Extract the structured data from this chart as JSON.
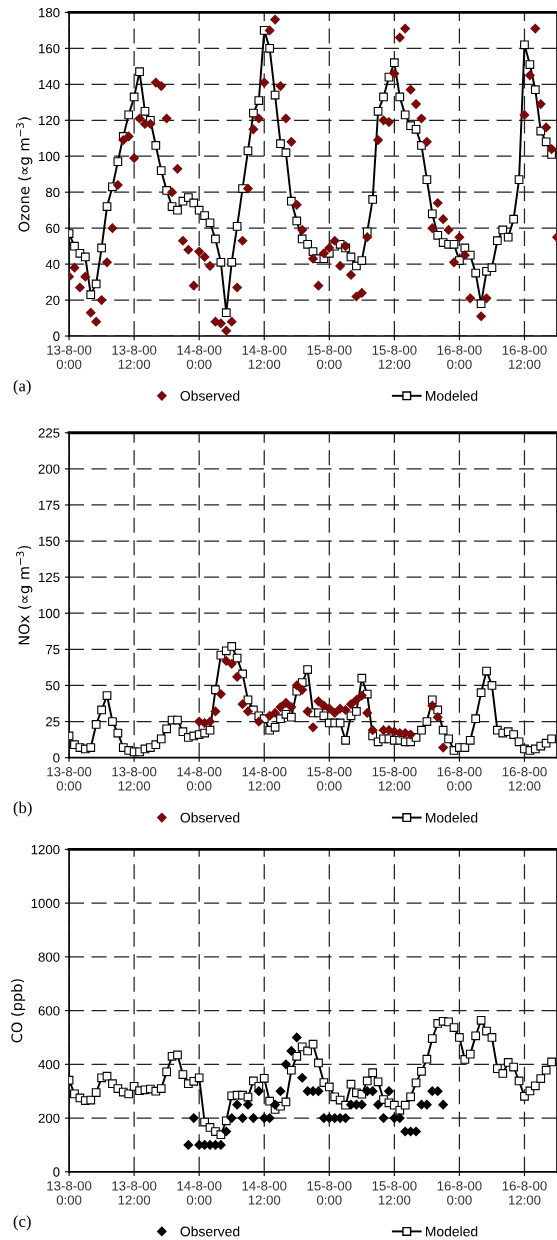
{
  "chart_data": [
    {
      "type": "scatter",
      "ylabel": "Ozone (∝g m$^{−3}$)",
      "annotations": [
        "(a)"
      ],
      "x": [
        "2000-08-13T00:00",
        "2000-08-13T01:00",
        "2000-08-13T02:00",
        "2000-08-13T03:00",
        "2000-08-13T04:00",
        "2000-08-13T05:00",
        "2000-08-13T06:00",
        "2000-08-13T07:00",
        "2000-08-13T08:00",
        "2000-08-13T09:00",
        "2000-08-13T10:00",
        "2000-08-13T11:00",
        "2000-08-13T12:00",
        "2000-08-13T13:00",
        "2000-08-13T14:00",
        "2000-08-13T15:00",
        "2000-08-13T16:00",
        "2000-08-13T17:00",
        "2000-08-13T18:00",
        "2000-08-13T19:00",
        "2000-08-13T20:00",
        "2000-08-13T21:00",
        "2000-08-13T22:00",
        "2000-08-13T23:00",
        "2000-08-14T00:00",
        "2000-08-14T01:00",
        "2000-08-14T02:00",
        "2000-08-14T03:00",
        "2000-08-14T04:00",
        "2000-08-14T05:00",
        "2000-08-14T06:00",
        "2000-08-14T07:00",
        "2000-08-14T08:00",
        "2000-08-14T09:00",
        "2000-08-14T10:00",
        "2000-08-14T11:00",
        "2000-08-14T12:00",
        "2000-08-14T13:00",
        "2000-08-14T14:00",
        "2000-08-14T15:00",
        "2000-08-14T16:00",
        "2000-08-14T17:00",
        "2000-08-14T18:00",
        "2000-08-14T19:00",
        "2000-08-14T20:00",
        "2000-08-14T21:00",
        "2000-08-14T22:00",
        "2000-08-14T23:00",
        "2000-08-15T00:00",
        "2000-08-15T01:00",
        "2000-08-15T02:00",
        "2000-08-15T03:00",
        "2000-08-15T04:00",
        "2000-08-15T05:00",
        "2000-08-15T06:00",
        "2000-08-15T07:00",
        "2000-08-15T08:00",
        "2000-08-15T09:00",
        "2000-08-15T10:00",
        "2000-08-15T11:00",
        "2000-08-15T12:00",
        "2000-08-15T13:00",
        "2000-08-15T14:00",
        "2000-08-15T15:00",
        "2000-08-15T16:00",
        "2000-08-15T17:00",
        "2000-08-15T18:00",
        "2000-08-15T19:00",
        "2000-08-15T20:00",
        "2000-08-15T21:00",
        "2000-08-15T22:00",
        "2000-08-15T23:00",
        "2000-08-16T00:00",
        "2000-08-16T01:00",
        "2000-08-16T02:00",
        "2000-08-16T03:00",
        "2000-08-16T04:00",
        "2000-08-16T05:00",
        "2000-08-16T06:00",
        "2000-08-16T07:00",
        "2000-08-16T08:00",
        "2000-08-16T09:00",
        "2000-08-16T10:00",
        "2000-08-16T11:00",
        "2000-08-16T12:00",
        "2000-08-16T13:00",
        "2000-08-16T14:00",
        "2000-08-16T15:00",
        "2000-08-16T16:00",
        "2000-08-16T17:00",
        "2000-08-16T18:00"
      ],
      "xlim": [
        "2000-08-13T00:00",
        "2000-08-16T18:00"
      ],
      "xticks": [
        {
          "value": "2000-08-13T00:00",
          "label": "13-8-00\n0:00"
        },
        {
          "value": "2000-08-13T12:00",
          "label": "13-8-00\n12:00"
        },
        {
          "value": "2000-08-14T00:00",
          "label": "14-8-00\n0:00"
        },
        {
          "value": "2000-08-14T12:00",
          "label": "14-8-00\n12:00"
        },
        {
          "value": "2000-08-15T00:00",
          "label": "15-8-00\n0:00"
        },
        {
          "value": "2000-08-15T12:00",
          "label": "15-8-00\n12:00"
        },
        {
          "value": "2000-08-16T00:00",
          "label": "16-8-00\n0:00"
        },
        {
          "value": "2000-08-16T12:00",
          "label": "16-8-00\n12:00"
        }
      ],
      "ylim": [
        0,
        180
      ],
      "yticks": [
        0,
        20,
        40,
        60,
        80,
        100,
        120,
        140,
        160,
        180
      ],
      "grid": true,
      "legend": "bottom",
      "series": [
        {
          "name": "Observed",
          "marker": "diamond",
          "color": "#7a0a0a",
          "values": [
            33,
            38,
            27,
            33,
            13,
            8,
            20,
            41,
            60,
            84,
            109,
            111,
            99,
            121,
            118,
            118,
            141,
            139,
            121,
            80,
            93,
            53,
            48,
            28,
            47,
            44,
            39,
            8,
            7,
            3,
            8,
            27,
            53,
            82,
            115,
            121,
            141,
            170,
            176,
            139,
            121,
            108,
            73,
            59,
            null,
            43,
            28,
            46,
            49,
            53,
            39,
            50,
            34,
            22,
            24,
            55,
            null,
            109,
            120,
            119,
            146,
            166,
            171,
            137,
            129,
            121,
            108,
            60,
            74,
            65,
            59,
            41,
            55,
            45,
            21,
            null,
            11,
            21,
            null,
            null,
            null,
            null,
            null,
            null,
            123,
            145,
            171,
            129,
            116,
            104,
            55
          ]
        },
        {
          "name": "Modeled",
          "type": "line",
          "marker": "square",
          "line_style": "solid",
          "color": "#000000",
          "values": [
            57,
            50,
            46,
            44,
            23,
            29,
            49,
            72,
            83,
            97,
            111,
            123,
            133,
            147,
            125,
            120,
            106,
            92,
            81,
            72,
            70,
            75,
            77,
            74,
            70,
            67,
            63,
            54,
            41,
            13,
            41,
            61,
            82,
            103,
            124,
            131,
            170,
            160,
            134,
            107,
            102,
            75,
            64,
            54,
            51,
            47,
            43,
            43,
            46,
            50,
            51,
            49,
            44,
            39,
            42,
            58,
            76,
            125,
            133,
            144,
            152,
            133,
            123,
            117,
            115,
            106,
            87,
            68,
            56,
            52,
            51,
            51,
            42,
            49,
            45,
            35,
            18,
            36,
            38,
            53,
            59,
            55,
            65,
            87,
            162,
            151,
            137,
            114,
            108,
            101,
            null
          ]
        }
      ]
    },
    {
      "type": "scatter",
      "ylabel": "NOx (∝g m$^{−3}$)",
      "annotations": [
        "(b)"
      ],
      "x": [
        "2000-08-13T00:00",
        "2000-08-13T01:00",
        "2000-08-13T02:00",
        "2000-08-13T03:00",
        "2000-08-13T04:00",
        "2000-08-13T05:00",
        "2000-08-13T06:00",
        "2000-08-13T07:00",
        "2000-08-13T08:00",
        "2000-08-13T09:00",
        "2000-08-13T10:00",
        "2000-08-13T11:00",
        "2000-08-13T12:00",
        "2000-08-13T13:00",
        "2000-08-13T14:00",
        "2000-08-13T15:00",
        "2000-08-13T16:00",
        "2000-08-13T17:00",
        "2000-08-13T18:00",
        "2000-08-13T19:00",
        "2000-08-13T20:00",
        "2000-08-13T21:00",
        "2000-08-13T22:00",
        "2000-08-13T23:00",
        "2000-08-14T00:00",
        "2000-08-14T01:00",
        "2000-08-14T02:00",
        "2000-08-14T03:00",
        "2000-08-14T04:00",
        "2000-08-14T05:00",
        "2000-08-14T06:00",
        "2000-08-14T07:00",
        "2000-08-14T08:00",
        "2000-08-14T09:00",
        "2000-08-14T10:00",
        "2000-08-14T11:00",
        "2000-08-14T12:00",
        "2000-08-14T13:00",
        "2000-08-14T14:00",
        "2000-08-14T15:00",
        "2000-08-14T16:00",
        "2000-08-14T17:00",
        "2000-08-14T18:00",
        "2000-08-14T19:00",
        "2000-08-14T20:00",
        "2000-08-14T21:00",
        "2000-08-14T22:00",
        "2000-08-14T23:00",
        "2000-08-15T00:00",
        "2000-08-15T01:00",
        "2000-08-15T02:00",
        "2000-08-15T03:00",
        "2000-08-15T04:00",
        "2000-08-15T05:00",
        "2000-08-15T06:00",
        "2000-08-15T07:00",
        "2000-08-15T08:00",
        "2000-08-15T09:00",
        "2000-08-15T10:00",
        "2000-08-15T11:00",
        "2000-08-15T12:00",
        "2000-08-15T13:00",
        "2000-08-15T14:00",
        "2000-08-15T15:00",
        "2000-08-15T16:00",
        "2000-08-15T17:00",
        "2000-08-15T18:00",
        "2000-08-15T19:00",
        "2000-08-15T20:00",
        "2000-08-15T21:00",
        "2000-08-15T22:00",
        "2000-08-15T23:00",
        "2000-08-16T00:00",
        "2000-08-16T01:00",
        "2000-08-16T02:00",
        "2000-08-16T03:00",
        "2000-08-16T04:00",
        "2000-08-16T05:00",
        "2000-08-16T06:00",
        "2000-08-16T07:00",
        "2000-08-16T08:00",
        "2000-08-16T09:00",
        "2000-08-16T10:00",
        "2000-08-16T11:00",
        "2000-08-16T12:00",
        "2000-08-16T13:00",
        "2000-08-16T14:00",
        "2000-08-16T15:00",
        "2000-08-16T16:00",
        "2000-08-16T17:00"
      ],
      "xlim": [
        "2000-08-13T00:00",
        "2000-08-16T18:00"
      ],
      "xticks": [
        {
          "value": "2000-08-13T00:00",
          "label": "13-8-00\n0:00"
        },
        {
          "value": "2000-08-13T12:00",
          "label": "13-8-00\n12:00"
        },
        {
          "value": "2000-08-14T00:00",
          "label": "14-8-00\n0:00"
        },
        {
          "value": "2000-08-14T12:00",
          "label": "14-8-00\n12:00"
        },
        {
          "value": "2000-08-15T00:00",
          "label": "15-8-00\n0:00"
        },
        {
          "value": "2000-08-15T12:00",
          "label": "15-8-00\n12:00"
        },
        {
          "value": "2000-08-16T00:00",
          "label": "16-8-00\n0:00"
        },
        {
          "value": "2000-08-16T12:00",
          "label": "16-8-00\n12:00"
        }
      ],
      "ylim": [
        0,
        225
      ],
      "yticks": [
        0,
        25,
        50,
        75,
        100,
        125,
        150,
        175,
        200,
        225
      ],
      "grid": true,
      "legend": "bottom",
      "series": [
        {
          "name": "Observed",
          "marker": "diamond",
          "color": "#7a0a0a",
          "values": [
            null,
            null,
            null,
            null,
            null,
            null,
            null,
            null,
            null,
            null,
            null,
            null,
            null,
            null,
            null,
            null,
            null,
            null,
            null,
            null,
            null,
            null,
            null,
            null,
            25,
            24,
            25,
            32,
            44,
            67,
            65,
            56,
            37,
            32,
            null,
            25,
            null,
            29,
            31,
            35,
            38,
            35,
            50,
            47,
            32,
            21,
            39,
            36,
            34,
            31,
            34,
            33,
            37,
            40,
            43,
            31,
            19,
            null,
            19,
            19,
            18,
            17,
            17,
            16,
            null,
            null,
            null,
            36,
            28,
            7,
            null,
            null,
            null,
            null,
            null,
            null,
            null,
            null,
            null,
            null,
            null,
            null,
            null,
            null,
            null,
            null,
            null,
            null,
            null,
            null
          ]
        },
        {
          "name": "Modeled",
          "type": "line",
          "marker": "square",
          "line_style": "solid",
          "color": "#000000",
          "values": [
            15,
            9,
            7,
            6,
            7,
            23,
            33,
            43,
            25,
            17,
            7,
            5,
            4,
            4,
            6,
            7,
            9,
            13,
            20,
            26,
            26,
            18,
            14,
            15,
            16,
            17,
            19,
            47,
            71,
            74,
            77,
            69,
            58,
            40,
            33,
            29,
            27,
            19,
            21,
            27,
            30,
            28,
            46,
            52,
            61,
            31,
            31,
            29,
            24,
            24,
            24,
            12,
            29,
            32,
            55,
            44,
            15,
            11,
            13,
            13,
            12,
            12,
            11,
            11,
            14,
            19,
            25,
            40,
            33,
            19,
            13,
            5,
            7,
            7,
            12,
            27,
            45,
            60,
            50,
            19,
            17,
            18,
            16,
            11,
            6,
            5,
            6,
            8,
            10,
            13
          ]
        }
      ]
    },
    {
      "type": "scatter",
      "ylabel": "CO (ppb)",
      "annotations": [
        "(c)"
      ],
      "x": [
        "2000-08-13T00:00",
        "2000-08-13T01:00",
        "2000-08-13T02:00",
        "2000-08-13T03:00",
        "2000-08-13T04:00",
        "2000-08-13T05:00",
        "2000-08-13T06:00",
        "2000-08-13T07:00",
        "2000-08-13T08:00",
        "2000-08-13T09:00",
        "2000-08-13T10:00",
        "2000-08-13T11:00",
        "2000-08-13T12:00",
        "2000-08-13T13:00",
        "2000-08-13T14:00",
        "2000-08-13T15:00",
        "2000-08-13T16:00",
        "2000-08-13T17:00",
        "2000-08-13T18:00",
        "2000-08-13T19:00",
        "2000-08-13T20:00",
        "2000-08-13T21:00",
        "2000-08-13T22:00",
        "2000-08-13T23:00",
        "2000-08-14T00:00",
        "2000-08-14T01:00",
        "2000-08-14T02:00",
        "2000-08-14T03:00",
        "2000-08-14T04:00",
        "2000-08-14T05:00",
        "2000-08-14T06:00",
        "2000-08-14T07:00",
        "2000-08-14T08:00",
        "2000-08-14T09:00",
        "2000-08-14T10:00",
        "2000-08-14T11:00",
        "2000-08-14T12:00",
        "2000-08-14T13:00",
        "2000-08-14T14:00",
        "2000-08-14T15:00",
        "2000-08-14T16:00",
        "2000-08-14T17:00",
        "2000-08-14T18:00",
        "2000-08-14T19:00",
        "2000-08-14T20:00",
        "2000-08-14T21:00",
        "2000-08-14T22:00",
        "2000-08-14T23:00",
        "2000-08-15T00:00",
        "2000-08-15T01:00",
        "2000-08-15T02:00",
        "2000-08-15T03:00",
        "2000-08-15T04:00",
        "2000-08-15T05:00",
        "2000-08-15T06:00",
        "2000-08-15T07:00",
        "2000-08-15T08:00",
        "2000-08-15T09:00",
        "2000-08-15T10:00",
        "2000-08-15T11:00",
        "2000-08-15T12:00",
        "2000-08-15T13:00",
        "2000-08-15T14:00",
        "2000-08-15T15:00",
        "2000-08-15T16:00",
        "2000-08-15T17:00",
        "2000-08-15T18:00",
        "2000-08-15T19:00",
        "2000-08-15T20:00",
        "2000-08-15T21:00",
        "2000-08-15T22:00",
        "2000-08-15T23:00",
        "2000-08-16T00:00",
        "2000-08-16T01:00",
        "2000-08-16T02:00",
        "2000-08-16T03:00",
        "2000-08-16T04:00",
        "2000-08-16T05:00",
        "2000-08-16T06:00",
        "2000-08-16T07:00",
        "2000-08-16T08:00",
        "2000-08-16T09:00",
        "2000-08-16T10:00",
        "2000-08-16T11:00",
        "2000-08-16T12:00",
        "2000-08-16T13:00",
        "2000-08-16T14:00",
        "2000-08-16T15:00",
        "2000-08-16T16:00",
        "2000-08-16T17:00"
      ],
      "xlim": [
        "2000-08-13T00:00",
        "2000-08-16T18:00"
      ],
      "xticks": [
        {
          "value": "2000-08-13T00:00",
          "label": "13-8-00\n0:00"
        },
        {
          "value": "2000-08-13T12:00",
          "label": "13-8-00\n12:00"
        },
        {
          "value": "2000-08-14T00:00",
          "label": "14-8-00\n0:00"
        },
        {
          "value": "2000-08-14T12:00",
          "label": "14-8-00\n12:00"
        },
        {
          "value": "2000-08-15T00:00",
          "label": "15-8-00\n0:00"
        },
        {
          "value": "2000-08-15T12:00",
          "label": "15-8-00\n12:00"
        },
        {
          "value": "2000-08-16T00:00",
          "label": "16-8-00\n0:00"
        },
        {
          "value": "2000-08-16T12:00",
          "label": "16-8-00\n12:00"
        }
      ],
      "ylim": [
        0,
        1200
      ],
      "yticks": [
        0,
        200,
        400,
        600,
        800,
        1000,
        1200
      ],
      "grid": true,
      "legend": "bottom",
      "series": [
        {
          "name": "Observed",
          "marker": "diamond",
          "color": "#000000",
          "values": [
            null,
            null,
            null,
            null,
            null,
            null,
            null,
            null,
            null,
            null,
            null,
            null,
            null,
            null,
            null,
            null,
            null,
            null,
            null,
            null,
            null,
            null,
            100,
            200,
            100,
            100,
            100,
            100,
            100,
            150,
            200,
            250,
            200,
            250,
            200,
            300,
            200,
            200,
            250,
            300,
            400,
            450,
            500,
            350,
            300,
            300,
            300,
            200,
            200,
            200,
            200,
            200,
            250,
            250,
            250,
            300,
            300,
            250,
            200,
            300,
            200,
            200,
            150,
            150,
            150,
            250,
            250,
            300,
            300,
            250,
            null,
            null,
            null,
            null,
            null,
            null,
            null,
            null,
            null,
            null,
            null,
            null,
            null,
            null,
            null,
            null,
            null,
            null,
            null,
            null
          ]
        },
        {
          "name": "Modeled",
          "type": "line",
          "marker": "square",
          "line_style": "solid",
          "color": "#000000",
          "values": [
            341,
            290,
            275,
            265,
            267,
            295,
            350,
            356,
            328,
            310,
            297,
            290,
            318,
            302,
            305,
            308,
            300,
            310,
            372,
            430,
            435,
            362,
            328,
            337,
            350,
            185,
            165,
            150,
            138,
            190,
            283,
            285,
            285,
            278,
            338,
            318,
            348,
            263,
            232,
            244,
            260,
            378,
            430,
            465,
            450,
            475,
            405,
            332,
            316,
            279,
            267,
            248,
            326,
            294,
            289,
            338,
            369,
            335,
            269,
            257,
            248,
            229,
            248,
            279,
            331,
            374,
            419,
            496,
            552,
            560,
            558,
            537,
            500,
            418,
            438,
            506,
            564,
            524,
            500,
            384,
            366,
            407,
            390,
            338,
            281,
            301,
            320,
            347,
            378,
            409
          ]
        }
      ]
    }
  ]
}
